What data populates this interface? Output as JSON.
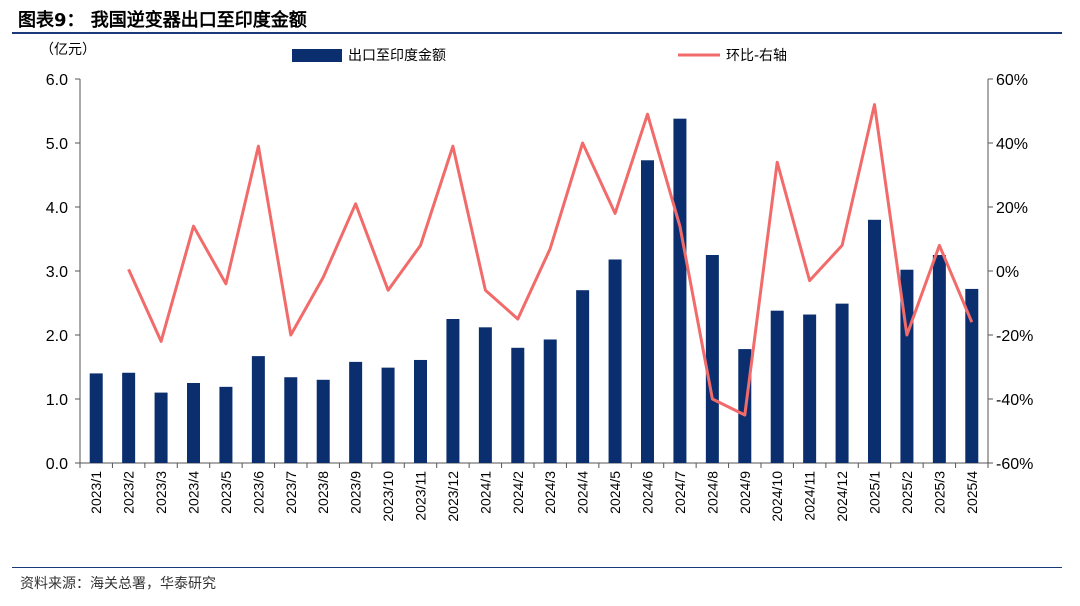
{
  "header": {
    "title": "图表9： 我国逆变器出口至印度金额"
  },
  "footer": {
    "source": "资料来源：海关总署，华泰研究"
  },
  "chart_data": {
    "type": "bar",
    "categories": [
      "2023/1",
      "2023/2",
      "2023/3",
      "2023/4",
      "2023/5",
      "2023/6",
      "2023/7",
      "2023/8",
      "2023/9",
      "2023/10",
      "2023/11",
      "2023/12",
      "2024/1",
      "2024/2",
      "2024/3",
      "2024/4",
      "2024/5",
      "2024/6",
      "2024/7",
      "2024/8",
      "2024/9",
      "2024/10",
      "2024/11",
      "2024/12",
      "2025/1",
      "2025/2",
      "2025/3",
      "2025/4"
    ],
    "y_unit_label": "（亿元）",
    "ylim": [
      0,
      6
    ],
    "y_ticks": [
      "0.0",
      "1.0",
      "2.0",
      "3.0",
      "4.0",
      "5.0",
      "6.0"
    ],
    "y2lim": [
      -60,
      60
    ],
    "y2_ticks": [
      "-60%",
      "-40%",
      "-20%",
      "0%",
      "20%",
      "40%",
      "60%"
    ],
    "grid": false,
    "legend_position": "top",
    "series": [
      {
        "name": "出口至印度金额",
        "type": "bar",
        "axis": "left",
        "color": "#0b2f6e",
        "values": [
          1.4,
          1.41,
          1.1,
          1.25,
          1.19,
          1.67,
          1.34,
          1.3,
          1.58,
          1.49,
          1.61,
          2.25,
          2.12,
          1.8,
          1.93,
          2.7,
          3.18,
          4.73,
          5.38,
          3.25,
          1.78,
          2.38,
          2.32,
          2.49,
          3.8,
          3.02,
          3.25,
          2.72
        ]
      },
      {
        "name": "环比-右轴",
        "type": "line",
        "axis": "right",
        "color": "#f26b6b",
        "values": [
          null,
          0.5,
          -22,
          14,
          -4,
          39,
          -20,
          -2,
          21,
          -6,
          8,
          39,
          -6,
          -15,
          7,
          40,
          18,
          49,
          14,
          -40,
          -45,
          34,
          -3,
          8,
          52,
          -20,
          8,
          -16
        ]
      }
    ]
  }
}
